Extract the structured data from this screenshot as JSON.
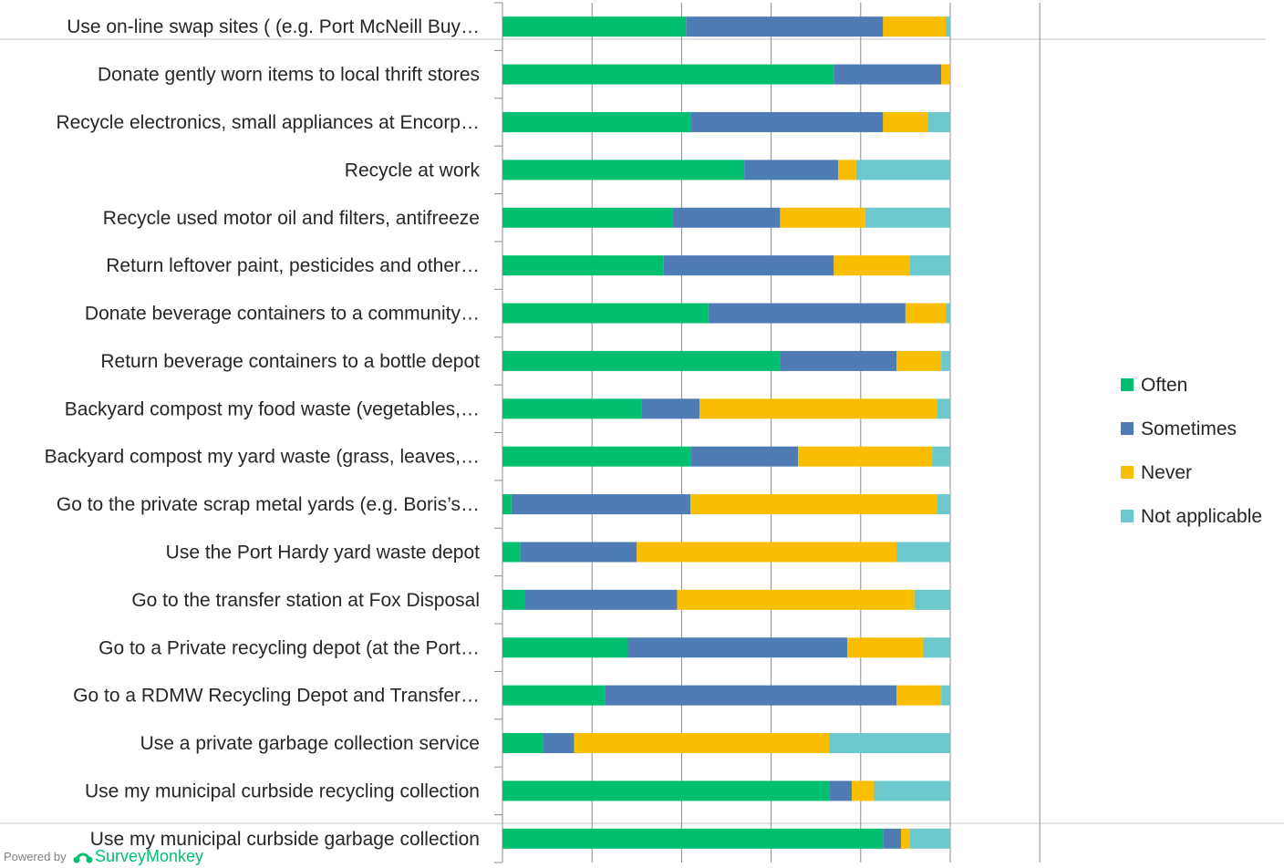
{
  "powered_by": "Powered by",
  "brand_name": "SurveyMonkey",
  "chart_data": {
    "type": "bar",
    "orientation": "horizontal",
    "stacked": "percent",
    "xlim": [
      0,
      1.2
    ],
    "grid": true,
    "legend_position": "right",
    "categories": [
      "Use on-line swap sites ( (e.g. Port McNeill Buy…",
      "Donate gently worn items to local thrift stores",
      "Recycle electronics, small appliances at Encorp…",
      "Recycle at work",
      "Recycle used motor oil and filters, antifreeze",
      "Return leftover paint, pesticides and other…",
      "Donate beverage containers to a community…",
      "Return beverage containers to a bottle depot",
      "Backyard compost my food waste (vegetables,…",
      "Backyard compost my yard waste (grass, leaves,…",
      "Go to the private scrap metal yards (e.g. Boris’s…",
      "Use the Port Hardy yard waste depot",
      "Go to the transfer station at Fox Disposal",
      "Go to a Private recycling depot (at the Port…",
      "Go to a RDMW Recycling Depot and Transfer…",
      "Use a private garbage collection service",
      "Use my municipal curbside recycling collection",
      "Use my municipal curbside garbage collection"
    ],
    "series": [
      {
        "name": "Often",
        "color": "#00bf6f",
        "values": [
          0.41,
          0.74,
          0.42,
          0.54,
          0.38,
          0.36,
          0.46,
          0.62,
          0.31,
          0.42,
          0.02,
          0.04,
          0.05,
          0.28,
          0.23,
          0.09,
          0.73,
          0.85
        ]
      },
      {
        "name": "Sometimes",
        "color": "#507cb6",
        "values": [
          0.44,
          0.24,
          0.43,
          0.21,
          0.24,
          0.38,
          0.44,
          0.26,
          0.13,
          0.24,
          0.4,
          0.26,
          0.34,
          0.49,
          0.65,
          0.07,
          0.05,
          0.04
        ]
      },
      {
        "name": "Never",
        "color": "#f9be00",
        "values": [
          0.14,
          0.02,
          0.1,
          0.04,
          0.19,
          0.17,
          0.09,
          0.1,
          0.53,
          0.3,
          0.55,
          0.58,
          0.53,
          0.17,
          0.1,
          0.57,
          0.05,
          0.02
        ]
      },
      {
        "name": "Not applicable",
        "color": "#6bc8cd",
        "values": [
          0.01,
          0.0,
          0.05,
          0.21,
          0.19,
          0.09,
          0.01,
          0.02,
          0.03,
          0.04,
          0.03,
          0.12,
          0.08,
          0.06,
          0.02,
          0.27,
          0.17,
          0.09
        ]
      }
    ]
  }
}
